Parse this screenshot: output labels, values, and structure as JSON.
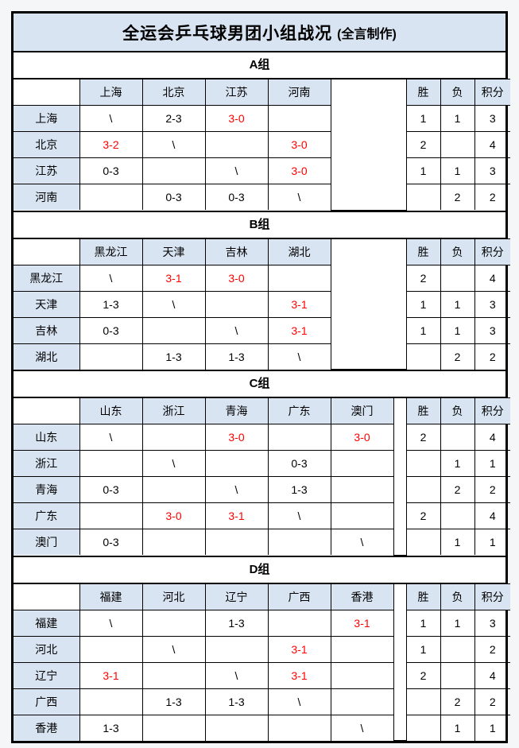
{
  "title": {
    "main": "全运会乒乓球男团小组战况",
    "suffix": "(全言制作)"
  },
  "stats_headers": {
    "win": "胜",
    "loss": "负",
    "points": "积分"
  },
  "colors": {
    "accent_fill": "#D9E4F2",
    "win_text": "#FF0000",
    "grid_line": "#000000"
  },
  "groups": [
    {
      "id": "group-a",
      "name": "A组",
      "teams": [
        "上海",
        "北京",
        "江苏",
        "河南"
      ],
      "rows": [
        {
          "team": "上海",
          "cells": [
            {
              "v": "\\"
            },
            {
              "v": "2-3"
            },
            {
              "v": "3-0",
              "win": true
            },
            {
              "v": ""
            }
          ],
          "wins": "1",
          "losses": "1",
          "points": "3"
        },
        {
          "team": "北京",
          "cells": [
            {
              "v": "3-2",
              "win": true
            },
            {
              "v": "\\"
            },
            {
              "v": ""
            },
            {
              "v": "3-0",
              "win": true
            }
          ],
          "wins": "2",
          "losses": "",
          "points": "4"
        },
        {
          "team": "江苏",
          "cells": [
            {
              "v": "0-3"
            },
            {
              "v": ""
            },
            {
              "v": "\\"
            },
            {
              "v": "3-0",
              "win": true
            }
          ],
          "wins": "1",
          "losses": "1",
          "points": "3"
        },
        {
          "team": "河南",
          "cells": [
            {
              "v": ""
            },
            {
              "v": "0-3"
            },
            {
              "v": "0-3"
            },
            {
              "v": "\\"
            }
          ],
          "wins": "",
          "losses": "2",
          "points": "2"
        }
      ]
    },
    {
      "id": "group-b",
      "name": "B组",
      "teams": [
        "黑龙江",
        "天津",
        "吉林",
        "湖北"
      ],
      "rows": [
        {
          "team": "黑龙江",
          "cells": [
            {
              "v": "\\"
            },
            {
              "v": "3-1",
              "win": true
            },
            {
              "v": "3-0",
              "win": true
            },
            {
              "v": ""
            }
          ],
          "wins": "2",
          "losses": "",
          "points": "4"
        },
        {
          "team": "天津",
          "cells": [
            {
              "v": "1-3"
            },
            {
              "v": "\\"
            },
            {
              "v": ""
            },
            {
              "v": "3-1",
              "win": true
            }
          ],
          "wins": "1",
          "losses": "1",
          "points": "3"
        },
        {
          "team": "吉林",
          "cells": [
            {
              "v": "0-3"
            },
            {
              "v": ""
            },
            {
              "v": "\\"
            },
            {
              "v": "3-1",
              "win": true
            }
          ],
          "wins": "1",
          "losses": "1",
          "points": "3"
        },
        {
          "team": "湖北",
          "cells": [
            {
              "v": ""
            },
            {
              "v": "1-3"
            },
            {
              "v": "1-3"
            },
            {
              "v": "\\"
            }
          ],
          "wins": "",
          "losses": "2",
          "points": "2"
        }
      ]
    },
    {
      "id": "group-c",
      "name": "C组",
      "teams": [
        "山东",
        "浙江",
        "青海",
        "广东",
        "澳门"
      ],
      "rows": [
        {
          "team": "山东",
          "cells": [
            {
              "v": "\\"
            },
            {
              "v": ""
            },
            {
              "v": "3-0",
              "win": true
            },
            {
              "v": ""
            },
            {
              "v": "3-0",
              "win": true
            }
          ],
          "wins": "2",
          "losses": "",
          "points": "4"
        },
        {
          "team": "浙江",
          "cells": [
            {
              "v": ""
            },
            {
              "v": "\\"
            },
            {
              "v": ""
            },
            {
              "v": "0-3"
            },
            {
              "v": ""
            }
          ],
          "wins": "",
          "losses": "1",
          "points": "1"
        },
        {
          "team": "青海",
          "cells": [
            {
              "v": "0-3"
            },
            {
              "v": ""
            },
            {
              "v": "\\"
            },
            {
              "v": "1-3"
            },
            {
              "v": ""
            }
          ],
          "wins": "",
          "losses": "2",
          "points": "2"
        },
        {
          "team": "广东",
          "cells": [
            {
              "v": ""
            },
            {
              "v": "3-0",
              "win": true
            },
            {
              "v": "3-1",
              "win": true
            },
            {
              "v": "\\"
            },
            {
              "v": ""
            }
          ],
          "wins": "2",
          "losses": "",
          "points": "4"
        },
        {
          "team": "澳门",
          "cells": [
            {
              "v": "0-3"
            },
            {
              "v": ""
            },
            {
              "v": ""
            },
            {
              "v": ""
            },
            {
              "v": "\\"
            }
          ],
          "wins": "",
          "losses": "1",
          "points": "1"
        }
      ]
    },
    {
      "id": "group-d",
      "name": "D组",
      "teams": [
        "福建",
        "河北",
        "辽宁",
        "广西",
        "香港"
      ],
      "rows": [
        {
          "team": "福建",
          "cells": [
            {
              "v": "\\"
            },
            {
              "v": ""
            },
            {
              "v": "1-3"
            },
            {
              "v": ""
            },
            {
              "v": "3-1",
              "win": true
            }
          ],
          "wins": "1",
          "losses": "1",
          "points": "3"
        },
        {
          "team": "河北",
          "cells": [
            {
              "v": ""
            },
            {
              "v": "\\"
            },
            {
              "v": ""
            },
            {
              "v": "3-1",
              "win": true
            },
            {
              "v": ""
            }
          ],
          "wins": "1",
          "losses": "",
          "points": "2"
        },
        {
          "team": "辽宁",
          "cells": [
            {
              "v": "3-1",
              "win": true
            },
            {
              "v": ""
            },
            {
              "v": "\\"
            },
            {
              "v": "3-1",
              "win": true
            },
            {
              "v": ""
            }
          ],
          "wins": "2",
          "losses": "",
          "points": "4"
        },
        {
          "team": "广西",
          "cells": [
            {
              "v": ""
            },
            {
              "v": "1-3"
            },
            {
              "v": "1-3"
            },
            {
              "v": "\\"
            },
            {
              "v": ""
            }
          ],
          "wins": "",
          "losses": "2",
          "points": "2"
        },
        {
          "team": "香港",
          "cells": [
            {
              "v": "1-3"
            },
            {
              "v": ""
            },
            {
              "v": ""
            },
            {
              "v": ""
            },
            {
              "v": "\\"
            }
          ],
          "wins": "",
          "losses": "1",
          "points": "1"
        }
      ]
    }
  ]
}
